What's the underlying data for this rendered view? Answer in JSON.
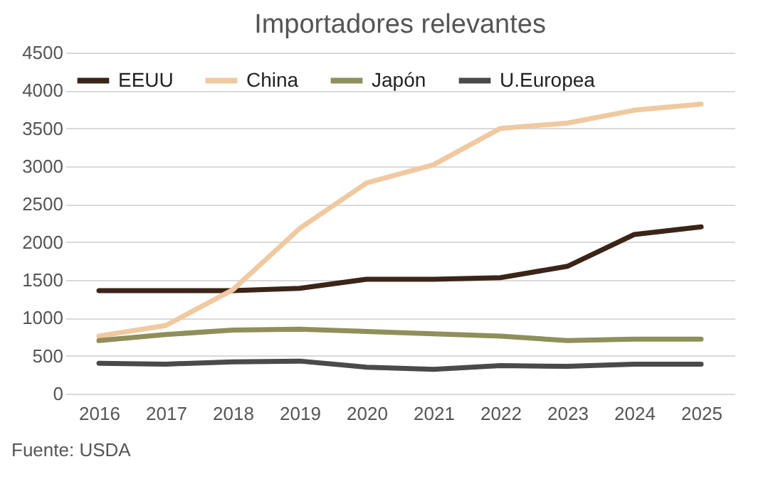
{
  "chart_data": {
    "type": "line",
    "title": "Importadores relevantes",
    "categories": [
      "2016",
      "2017",
      "2018",
      "2019",
      "2020",
      "2021",
      "2022",
      "2023",
      "2024",
      "2025"
    ],
    "series": [
      {
        "name": "EEUU",
        "color": "#3b2418",
        "values": [
          1360,
          1360,
          1360,
          1390,
          1510,
          1510,
          1530,
          1680,
          2100,
          2200
        ]
      },
      {
        "name": "China",
        "color": "#f0c9a0",
        "values": [
          760,
          900,
          1370,
          2180,
          2780,
          3020,
          3500,
          3570,
          3740,
          3820
        ]
      },
      {
        "name": "Japón",
        "color": "#8f8f5a",
        "values": [
          700,
          780,
          840,
          850,
          820,
          790,
          760,
          700,
          720,
          720
        ]
      },
      {
        "name": "U.Europea",
        "color": "#4a4a4a",
        "values": [
          400,
          390,
          420,
          430,
          350,
          320,
          370,
          360,
          390,
          390
        ]
      }
    ],
    "ylim": [
      0,
      4500
    ],
    "yticks": [
      0,
      500,
      1000,
      1500,
      2000,
      2500,
      3000,
      3500,
      4000,
      4500
    ],
    "grid": "y",
    "legend": "top left",
    "marker": "none",
    "line_style": "solid",
    "annotations": [
      "Fuente: USDA"
    ]
  }
}
